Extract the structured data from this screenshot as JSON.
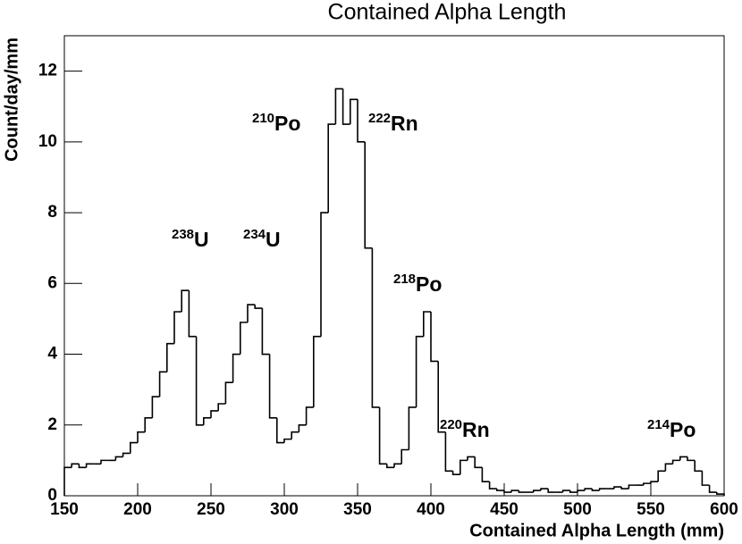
{
  "chart_data": {
    "type": "histogram",
    "title": "Contained Alpha Length",
    "xlabel": "Contained Alpha Length (mm)",
    "ylabel": "Count/day/mm",
    "color": "#000000",
    "bins": [
      150,
      155,
      160,
      165,
      170,
      175,
      180,
      185,
      190,
      195,
      200,
      205,
      210,
      215,
      220,
      225,
      230,
      235,
      240,
      245,
      250,
      255,
      260,
      265,
      270,
      275,
      280,
      285,
      290,
      295,
      300,
      305,
      310,
      315,
      320,
      325,
      330,
      335,
      340,
      345,
      350,
      355,
      360,
      365,
      370,
      375,
      380,
      385,
      390,
      395,
      400,
      405,
      410,
      415,
      420,
      425,
      430,
      435,
      440,
      445,
      450,
      455,
      460,
      465,
      470,
      475,
      480,
      485,
      490,
      495,
      500,
      505,
      510,
      515,
      520,
      525,
      530,
      535,
      540,
      545,
      550,
      555,
      560,
      565,
      570,
      575,
      580,
      585,
      590,
      595,
      600
    ],
    "counts": [
      0.8,
      0.9,
      0.8,
      0.9,
      0.9,
      1.0,
      1.0,
      1.1,
      1.2,
      1.5,
      1.8,
      2.2,
      2.8,
      3.5,
      4.3,
      5.2,
      5.8,
      4.5,
      2.0,
      2.2,
      2.4,
      2.6,
      3.2,
      4.0,
      4.9,
      5.4,
      5.3,
      4.0,
      2.2,
      1.5,
      1.6,
      1.8,
      2.0,
      2.5,
      4.5,
      8.0,
      10.5,
      11.5,
      10.5,
      11.2,
      10.0,
      7.0,
      2.5,
      0.9,
      0.8,
      0.9,
      1.3,
      2.5,
      4.5,
      5.2,
      3.8,
      1.8,
      0.7,
      0.6,
      1.0,
      1.1,
      0.8,
      0.4,
      0.2,
      0.15,
      0.1,
      0.15,
      0.1,
      0.1,
      0.15,
      0.2,
      0.1,
      0.1,
      0.15,
      0.1,
      0.15,
      0.2,
      0.15,
      0.2,
      0.2,
      0.25,
      0.2,
      0.3,
      0.3,
      0.35,
      0.4,
      0.7,
      0.9,
      1.0,
      1.1,
      1.0,
      0.7,
      0.3,
      0.1,
      0.05
    ],
    "xlim": [
      150,
      600
    ],
    "ylim": [
      0,
      13
    ],
    "xticks": [
      150,
      200,
      250,
      300,
      350,
      400,
      450,
      500,
      550,
      600
    ],
    "yticks": [
      0,
      2,
      4,
      6,
      8,
      10,
      12
    ],
    "annotations": [
      {
        "sup": "238",
        "text": "U"
      },
      {
        "sup": "234",
        "text": "U"
      },
      {
        "sup": "210",
        "text": "Po"
      },
      {
        "sup": "222",
        "text": "Rn"
      },
      {
        "sup": "218",
        "text": "Po"
      },
      {
        "sup": "220",
        "text": "Rn"
      },
      {
        "sup": "214",
        "text": "Po"
      }
    ]
  }
}
